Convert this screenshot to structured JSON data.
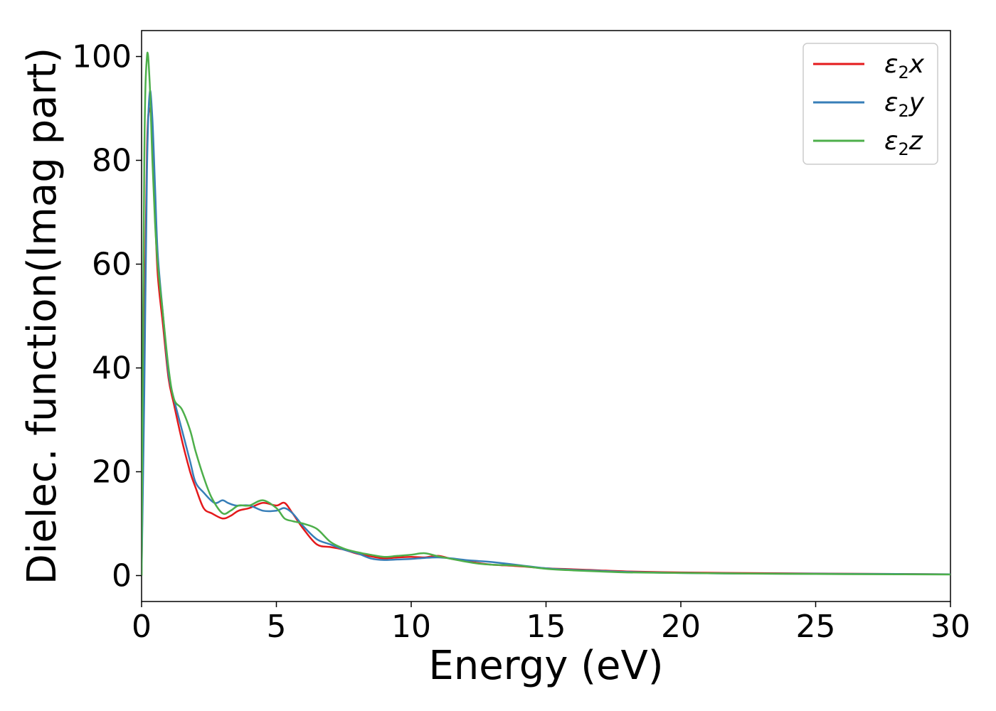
{
  "chart_data": {
    "type": "line",
    "xlabel": "Energy (eV)",
    "ylabel": "Dielec. function(Imag part)",
    "xlim": [
      0,
      30
    ],
    "ylim": [
      -5,
      105
    ],
    "xticks": [
      0,
      5,
      10,
      15,
      20,
      25,
      30
    ],
    "yticks": [
      0,
      20,
      40,
      60,
      80,
      100
    ],
    "grid": false,
    "legend_position": "top-right",
    "series": [
      {
        "name": "ε2x",
        "color": "#e41a1c",
        "x": [
          0,
          0.1,
          0.2,
          0.3,
          0.4,
          0.5,
          0.6,
          0.8,
          1.0,
          1.2,
          1.5,
          1.8,
          2.0,
          2.3,
          2.6,
          3.0,
          3.3,
          3.6,
          4.0,
          4.5,
          5.0,
          5.3,
          5.6,
          6.0,
          6.5,
          7.0,
          7.5,
          8.0,
          8.5,
          9.0,
          9.5,
          10.0,
          10.5,
          11.0,
          11.5,
          12.0,
          12.5,
          13.0,
          14.0,
          15.0,
          16.0,
          16.5,
          17.0,
          18.0,
          20.0,
          22.0,
          25.0,
          28.0,
          30.0
        ],
        "y": [
          0,
          45,
          82,
          90,
          84,
          70,
          58,
          48,
          38,
          33,
          26,
          20,
          17,
          13,
          12,
          11,
          11.5,
          12.5,
          13,
          14,
          13.5,
          14,
          12,
          9,
          6,
          5.5,
          5,
          4.2,
          3.7,
          3.3,
          3.5,
          3.6,
          3.5,
          3.8,
          3.2,
          2.8,
          2.4,
          2.1,
          1.8,
          1.4,
          1.2,
          1.1,
          1.0,
          0.8,
          0.6,
          0.5,
          0.4,
          0.3,
          0.25
        ]
      },
      {
        "name": "ε2y",
        "color": "#377eb8",
        "x": [
          0,
          0.1,
          0.2,
          0.3,
          0.4,
          0.5,
          0.6,
          0.8,
          1.0,
          1.2,
          1.5,
          1.8,
          2.0,
          2.3,
          2.7,
          3.0,
          3.2,
          3.5,
          4.0,
          4.5,
          5.0,
          5.3,
          5.6,
          6.0,
          6.5,
          7.0,
          7.5,
          8.0,
          8.5,
          9.0,
          9.5,
          10.0,
          10.5,
          11.0,
          11.5,
          12.0,
          12.5,
          13.0,
          14.0,
          15.0,
          16.0,
          17.0,
          18.0,
          20.0,
          22.0,
          25.0,
          28.0,
          30.0
        ],
        "y": [
          0,
          35,
          78,
          93,
          88,
          75,
          62,
          50,
          39,
          34,
          28,
          22,
          18,
          16,
          14,
          14.5,
          14,
          13.5,
          13.5,
          12.5,
          12.5,
          13,
          12,
          9.5,
          7,
          6,
          5,
          4.3,
          3.3,
          3.0,
          3.1,
          3.2,
          3.4,
          3.5,
          3.3,
          3.0,
          2.8,
          2.6,
          2.0,
          1.4,
          1.1,
          0.9,
          0.7,
          0.5,
          0.4,
          0.35,
          0.3,
          0.25
        ]
      },
      {
        "name": "ε2z",
        "color": "#4daf4a",
        "x": [
          0,
          0.1,
          0.2,
          0.3,
          0.4,
          0.5,
          0.6,
          0.8,
          1.0,
          1.2,
          1.5,
          1.8,
          2.0,
          2.3,
          2.6,
          3.0,
          3.3,
          3.6,
          4.0,
          4.5,
          5.0,
          5.3,
          5.6,
          6.0,
          6.5,
          7.0,
          7.5,
          8.0,
          8.5,
          9.0,
          9.5,
          10.0,
          10.5,
          11.0,
          11.5,
          12.0,
          12.5,
          13.0,
          14.0,
          15.0,
          16.0,
          17.0,
          18.0,
          20.0,
          22.0,
          25.0,
          28.0,
          30.0
        ],
        "y": [
          0,
          80,
          100,
          95,
          80,
          68,
          60,
          50,
          40,
          34,
          32,
          28,
          24,
          19,
          15,
          12,
          12.5,
          13.5,
          13.5,
          14.5,
          13,
          11,
          10.5,
          10,
          9,
          6.5,
          5.2,
          4.5,
          4.0,
          3.6,
          3.8,
          4.0,
          4.3,
          3.7,
          3.2,
          2.7,
          2.3,
          2.1,
          1.9,
          1.3,
          1.0,
          0.8,
          0.6,
          0.5,
          0.4,
          0.3,
          0.25,
          0.2
        ]
      }
    ]
  }
}
